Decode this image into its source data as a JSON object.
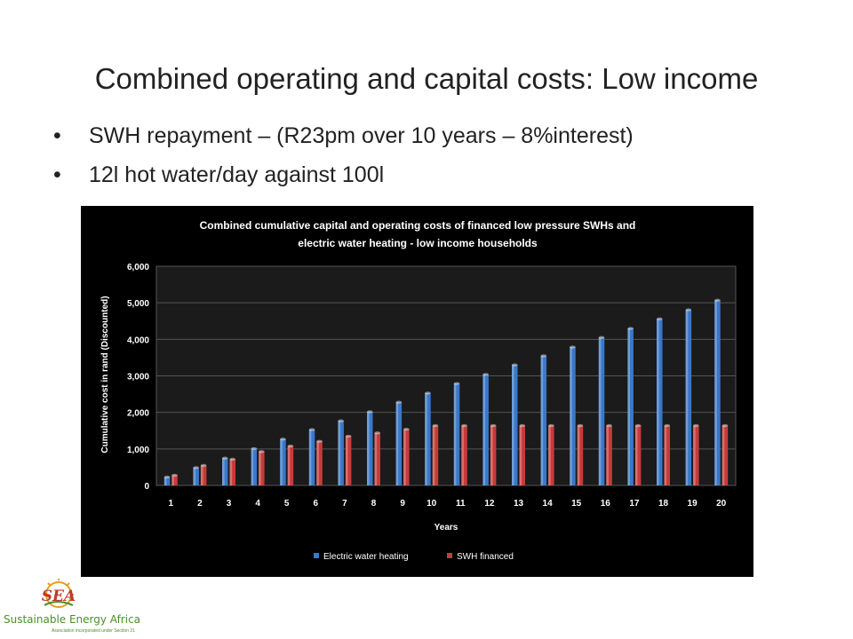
{
  "slide": {
    "title": "Combined operating and capital costs: Low income",
    "bullets": [
      "SWH repayment – (R23pm over 10 years – 8%interest)",
      "12l hot water/day against 100l"
    ]
  },
  "chart_data": {
    "type": "bar",
    "title_lines": [
      "Combined cumulative capital and operating costs of financed low pressure SWHs and",
      "electric water heating - low income households"
    ],
    "xlabel": "Years",
    "ylabel": "Cumulative cost in rand (Discounted)",
    "ylim": [
      0,
      6000
    ],
    "yticks": [
      0,
      1000,
      2000,
      3000,
      4000,
      5000,
      6000
    ],
    "ytick_labels": [
      "0",
      "1,000",
      "2,000",
      "3,000",
      "4,000",
      "5,000",
      "6,000"
    ],
    "categories": [
      "1",
      "2",
      "3",
      "4",
      "5",
      "6",
      "7",
      "8",
      "9",
      "10",
      "11",
      "12",
      "13",
      "14",
      "15",
      "16",
      "17",
      "18",
      "19",
      "20"
    ],
    "series": [
      {
        "name": "Electric water heating",
        "color": "#3a78c8",
        "values": [
          230,
          490,
          750,
          1010,
          1270,
          1530,
          1770,
          2020,
          2280,
          2530,
          2790,
          3040,
          3300,
          3550,
          3790,
          4050,
          4300,
          4560,
          4810,
          5070
        ]
      },
      {
        "name": "SWH financed",
        "color": "#c83a3a",
        "values": [
          280,
          550,
          720,
          930,
          1080,
          1210,
          1350,
          1440,
          1540,
          1640,
          1640,
          1640,
          1640,
          1640,
          1640,
          1640,
          1640,
          1640,
          1640,
          1640
        ]
      }
    ],
    "legend_position": "bottom",
    "grid": true,
    "background": "#000000"
  },
  "logo": {
    "mark": "SEA",
    "name": "Sustainable Energy Africa",
    "tagline": "Association incorporated under Section 21"
  }
}
